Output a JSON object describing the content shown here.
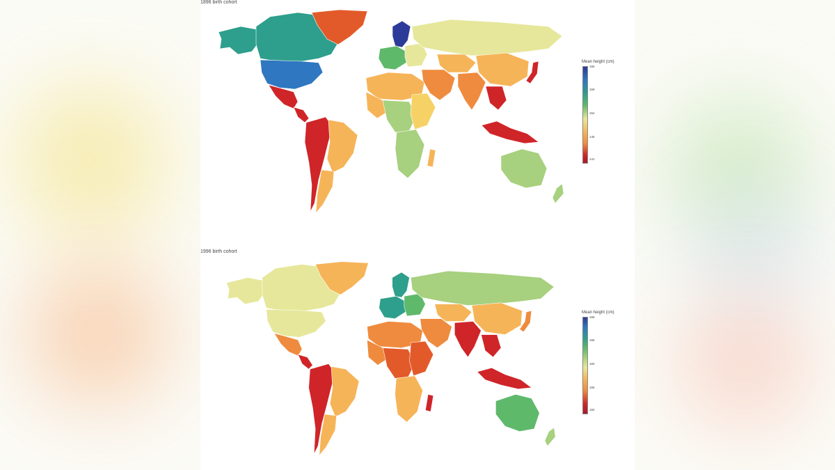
{
  "colors": {
    "dark_blue": "#2c3b99",
    "blue": "#2f77c0",
    "teal": "#2e9f8c",
    "green": "#5fb96b",
    "light_green": "#a7d07f",
    "pale_yellow": "#e6e79a",
    "yellow": "#f6d266",
    "light_orange": "#f6b458",
    "orange": "#ef8b3e",
    "red_orange": "#e35a2a",
    "red": "#cf2529",
    "dark_red": "#a81a2a"
  },
  "panels": [
    {
      "title": "1896 birth cohort",
      "legend": {
        "title": "Mean height (cm)",
        "ticks": [
          "165",
          "159",
          "152",
          "146",
          "141"
        ]
      },
      "regions": {
        "alaska": "teal",
        "canada": "teal",
        "greenland": "red_orange",
        "usa": "blue",
        "mexico": "red",
        "central_america": "red",
        "andes": "red",
        "brazil": "light_orange",
        "southern_cone": "light_orange",
        "scandinavia": "dark_blue",
        "west_europe": "green",
        "east_europe": "pale_yellow",
        "russia": "pale_yellow",
        "north_africa": "light_orange",
        "west_africa": "light_orange",
        "central_africa": "light_green",
        "east_africa": "yellow",
        "south_africa": "light_green",
        "madagascar": "light_orange",
        "middle_east": "orange",
        "central_asia": "light_orange",
        "india": "orange",
        "china": "light_orange",
        "japan": "red",
        "southeast_asia": "red",
        "indonesia": "red",
        "australia": "light_green",
        "new_zealand": "light_green"
      }
    },
    {
      "title": "1996 birth cohort",
      "legend": {
        "title": "Mean height (cm)",
        "ticks": [
          "169",
          "165",
          "160",
          "155",
          "150"
        ]
      },
      "regions": {
        "alaska": "pale_yellow",
        "canada": "pale_yellow",
        "greenland": "light_orange",
        "usa": "pale_yellow",
        "mexico": "orange",
        "central_america": "red",
        "andes": "red",
        "brazil": "light_orange",
        "southern_cone": "light_orange",
        "scandinavia": "teal",
        "west_europe": "teal",
        "east_europe": "green",
        "russia": "light_green",
        "north_africa": "orange",
        "west_africa": "orange",
        "central_africa": "red_orange",
        "east_africa": "red_orange",
        "south_africa": "light_orange",
        "madagascar": "red",
        "middle_east": "orange",
        "central_asia": "light_orange",
        "india": "red",
        "china": "light_orange",
        "japan": "orange",
        "southeast_asia": "red",
        "indonesia": "red",
        "australia": "green",
        "new_zealand": "light_green"
      }
    }
  ]
}
